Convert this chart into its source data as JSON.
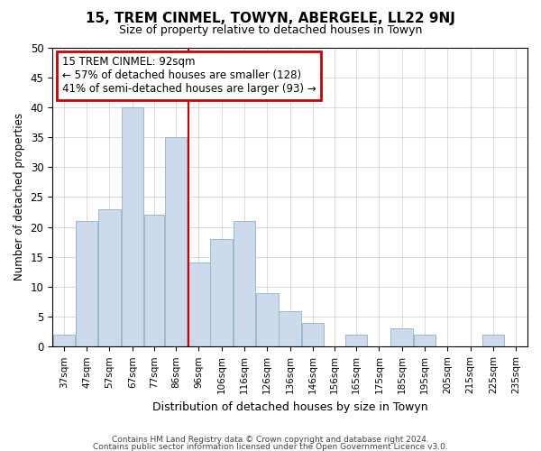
{
  "title": "15, TREM CINMEL, TOWYN, ABERGELE, LL22 9NJ",
  "subtitle": "Size of property relative to detached houses in Towyn",
  "xlabel": "Distribution of detached houses by size in Towyn",
  "ylabel": "Number of detached properties",
  "categories": [
    "37sqm",
    "47sqm",
    "57sqm",
    "67sqm",
    "77sqm",
    "86sqm",
    "96sqm",
    "106sqm",
    "116sqm",
    "126sqm",
    "136sqm",
    "146sqm",
    "156sqm",
    "165sqm",
    "175sqm",
    "185sqm",
    "195sqm",
    "205sqm",
    "215sqm",
    "225sqm",
    "235sqm"
  ],
  "values": [
    2,
    21,
    23,
    40,
    22,
    35,
    14,
    18,
    21,
    9,
    6,
    4,
    0,
    2,
    0,
    3,
    2,
    0,
    0,
    2,
    0
  ],
  "bar_color": "#cddaeb",
  "bar_edge_color": "#9bb8d4",
  "property_line_color": "#cc0000",
  "annotation_line1": "15 TREM CINMEL: 92sqm",
  "annotation_line2": "← 57% of detached houses are smaller (128)",
  "annotation_line3": "41% of semi-detached houses are larger (93) →",
  "annotation_box_color": "#cc0000",
  "ylim": [
    0,
    50
  ],
  "yticks": [
    0,
    5,
    10,
    15,
    20,
    25,
    30,
    35,
    40,
    45,
    50
  ],
  "footer_line1": "Contains HM Land Registry data © Crown copyright and database right 2024.",
  "footer_line2": "Contains public sector information licensed under the Open Government Licence v3.0.",
  "background_color": "#ffffff",
  "grid_color": "#cccccc"
}
